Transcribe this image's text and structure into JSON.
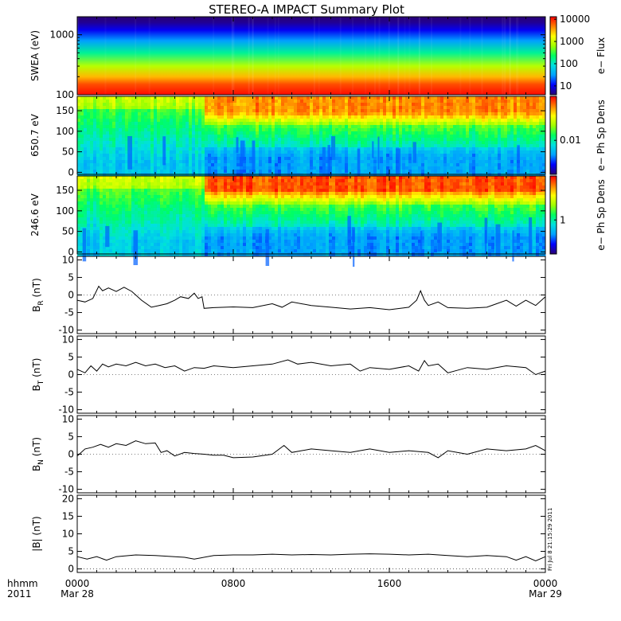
{
  "title": "STEREO-A IMPACT Summary Plot",
  "footer": {
    "left_top": "hhmm",
    "left_bottom": "2011",
    "stamp": "Fri Jul  8 21:15:29 2011"
  },
  "x_axis": {
    "range_hours": [
      0,
      24
    ],
    "ticks": [
      {
        "hour": 0,
        "label": "0000",
        "sub": "Mar 28"
      },
      {
        "hour": 8,
        "label": "0800",
        "sub": ""
      },
      {
        "hour": 16,
        "label": "1600",
        "sub": ""
      },
      {
        "hour": 24,
        "label": "0000",
        "sub": "Mar 29"
      }
    ]
  },
  "colors": {
    "rainbow": [
      "#2a0074",
      "#0000ff",
      "#00a0ff",
      "#00e0e0",
      "#00ff60",
      "#a0ff00",
      "#ffff00",
      "#ff8000",
      "#ff0000"
    ]
  },
  "chart_data": [
    {
      "type": "heatmap",
      "id": "swea",
      "ylabel": "SWEA (eV)",
      "yscale": "log",
      "ylim": [
        100,
        2000
      ],
      "yticks": [
        {
          "v": 100,
          "label": "100"
        },
        {
          "v": 1000,
          "label": "1000"
        }
      ],
      "colorbar": {
        "label": "e− Flux",
        "scale": "log",
        "range": [
          4,
          13000
        ],
        "ticks": [
          {
            "v": 10000,
            "label": "10000"
          },
          {
            "v": 1000,
            "label": "1000"
          },
          {
            "v": 100,
            "label": "100"
          },
          {
            "v": 10,
            "label": "10"
          }
        ]
      },
      "energy_profile_eV": [
        100,
        150,
        200,
        300,
        500,
        800,
        1200,
        1600,
        2000
      ],
      "flux_profile": [
        12000,
        7000,
        3000,
        800,
        150,
        30,
        10,
        5,
        4
      ]
    },
    {
      "type": "heatmap",
      "id": "pad650",
      "ylabel": "650.7 eV",
      "ylim": [
        -5,
        185
      ],
      "yticks": [
        {
          "v": 0,
          "label": "0"
        },
        {
          "v": 50,
          "label": "50"
        },
        {
          "v": 100,
          "label": "100"
        },
        {
          "v": 150,
          "label": "150"
        }
      ],
      "colorbar": {
        "label": "e− Ph Sp Dens",
        "scale": "log",
        "range": [
          0.002,
          0.08
        ],
        "ticks": [
          {
            "v": 0.01,
            "label": "0.01"
          }
        ]
      },
      "sector_boundary_hour": 6.5
    },
    {
      "type": "heatmap",
      "id": "pad246",
      "ylabel": "246.6 eV",
      "ylim": [
        -5,
        185
      ],
      "yticks": [
        {
          "v": 0,
          "label": "0"
        },
        {
          "v": 50,
          "label": "50"
        },
        {
          "v": 100,
          "label": "100"
        },
        {
          "v": 150,
          "label": "150"
        }
      ],
      "colorbar": {
        "label": "e− Ph Sp Dens",
        "scale": "log",
        "range": [
          0.25,
          6
        ],
        "ticks": [
          {
            "v": 1,
            "label": "1"
          }
        ]
      },
      "sector_boundary_hour": 6.5
    },
    {
      "type": "line",
      "id": "br",
      "ylabel_main": "B",
      "ylabel_sub": "R",
      "ylabel_unit": " (nT)",
      "ylim": [
        -11,
        11
      ],
      "yticks": [
        -10,
        -5,
        0,
        5,
        10
      ],
      "x": [
        0,
        0.4,
        0.8,
        1.1,
        1.3,
        1.6,
        2.0,
        2.4,
        2.8,
        3.3,
        3.8,
        4.2,
        4.6,
        5.0,
        5.3,
        5.7,
        6.0,
        6.2,
        6.4,
        6.5,
        7.0,
        8.0,
        9.0,
        10.0,
        10.5,
        11.0,
        12.0,
        13.0,
        14.0,
        15.0,
        16.0,
        17.0,
        17.4,
        17.6,
        17.8,
        18.0,
        18.5,
        19.0,
        20.0,
        21.0,
        21.5,
        22.0,
        22.5,
        23.0,
        23.5,
        24.0
      ],
      "y": [
        -1.5,
        -2.0,
        -1.0,
        2.5,
        1.2,
        2.0,
        1.0,
        2.2,
        1.0,
        -1.5,
        -3.5,
        -3.0,
        -2.5,
        -1.5,
        -0.5,
        -1.0,
        0.5,
        -1.0,
        -0.5,
        -3.8,
        -3.6,
        -3.4,
        -3.6,
        -2.5,
        -3.5,
        -2.0,
        -3.0,
        -3.5,
        -4.0,
        -3.6,
        -4.2,
        -3.5,
        -1.5,
        1.2,
        -1.5,
        -3.0,
        -2.0,
        -3.6,
        -3.8,
        -3.5,
        -2.5,
        -1.5,
        -3.2,
        -1.5,
        -3.0,
        -0.5
      ]
    },
    {
      "type": "line",
      "id": "bt",
      "ylabel_main": "B",
      "ylabel_sub": "T",
      "ylabel_unit": " (nT)",
      "ylim": [
        -11,
        11
      ],
      "yticks": [
        -10,
        -5,
        0,
        5,
        10
      ],
      "x": [
        0,
        0.4,
        0.7,
        1.0,
        1.3,
        1.6,
        2.0,
        2.5,
        3.0,
        3.5,
        4.0,
        4.5,
        5.0,
        5.5,
        6.0,
        6.5,
        7.0,
        8.0,
        9.0,
        10.0,
        10.8,
        11.3,
        12.0,
        13.0,
        14.0,
        14.5,
        15.0,
        16.0,
        17.0,
        17.5,
        17.8,
        18.0,
        18.5,
        19.0,
        20.0,
        21.0,
        22.0,
        23.0,
        23.5,
        24.0
      ],
      "y": [
        1.5,
        0.5,
        2.5,
        1.0,
        3.0,
        2.2,
        3.0,
        2.5,
        3.5,
        2.5,
        3.0,
        2.0,
        2.5,
        1.0,
        2.0,
        1.8,
        2.5,
        2.0,
        2.5,
        3.0,
        4.2,
        3.0,
        3.5,
        2.5,
        3.0,
        1.0,
        2.0,
        1.5,
        2.5,
        1.0,
        4.0,
        2.5,
        3.0,
        0.5,
        2.0,
        1.5,
        2.5,
        2.0,
        0.0,
        1.0
      ]
    },
    {
      "type": "line",
      "id": "bn",
      "ylabel_main": "B",
      "ylabel_sub": "N",
      "ylabel_unit": " (nT)",
      "ylim": [
        -11,
        11
      ],
      "yticks": [
        -10,
        -5,
        0,
        5,
        10
      ],
      "x": [
        0,
        0.4,
        0.8,
        1.2,
        1.6,
        2.0,
        2.5,
        3.0,
        3.5,
        4.0,
        4.3,
        4.6,
        5.0,
        5.5,
        6.0,
        6.5,
        7.0,
        7.5,
        8.0,
        9.0,
        10.0,
        10.6,
        11.0,
        12.0,
        13.0,
        14.0,
        15.0,
        16.0,
        17.0,
        18.0,
        18.5,
        19.0,
        20.0,
        21.0,
        22.0,
        23.0,
        23.5,
        24.0
      ],
      "y": [
        -0.5,
        1.5,
        2.0,
        2.8,
        2.0,
        3.0,
        2.5,
        3.8,
        3.0,
        3.2,
        0.5,
        1.0,
        -0.5,
        0.5,
        0.2,
        0.0,
        -0.3,
        -0.3,
        -1.0,
        -0.8,
        0.0,
        2.5,
        0.5,
        1.5,
        1.0,
        0.5,
        1.5,
        0.5,
        1.0,
        0.5,
        -1.0,
        1.0,
        0.0,
        1.5,
        1.0,
        1.5,
        2.5,
        1.0
      ]
    },
    {
      "type": "line",
      "id": "bmag",
      "ylabel_main": "|B| (nT)",
      "ylabel_sub": "",
      "ylabel_unit": "",
      "ylim": [
        -1,
        21
      ],
      "yticks": [
        0,
        5,
        10,
        15,
        20
      ],
      "x": [
        0,
        0.5,
        1.0,
        1.5,
        2.0,
        3.0,
        4.0,
        5.0,
        5.5,
        6.0,
        7.0,
        8.0,
        9.0,
        10.0,
        11.0,
        12.0,
        13.0,
        14.0,
        15.0,
        16.0,
        17.0,
        18.0,
        19.0,
        20.0,
        21.0,
        22.0,
        22.5,
        23.0,
        23.5,
        24.0
      ],
      "y": [
        3.5,
        2.8,
        3.5,
        2.5,
        3.5,
        4.0,
        3.8,
        3.5,
        3.3,
        2.8,
        3.8,
        4.0,
        4.0,
        4.2,
        4.0,
        4.1,
        4.0,
        4.2,
        4.3,
        4.2,
        4.0,
        4.2,
        3.8,
        3.5,
        3.8,
        3.5,
        2.5,
        3.5,
        2.3,
        3.5
      ]
    }
  ]
}
